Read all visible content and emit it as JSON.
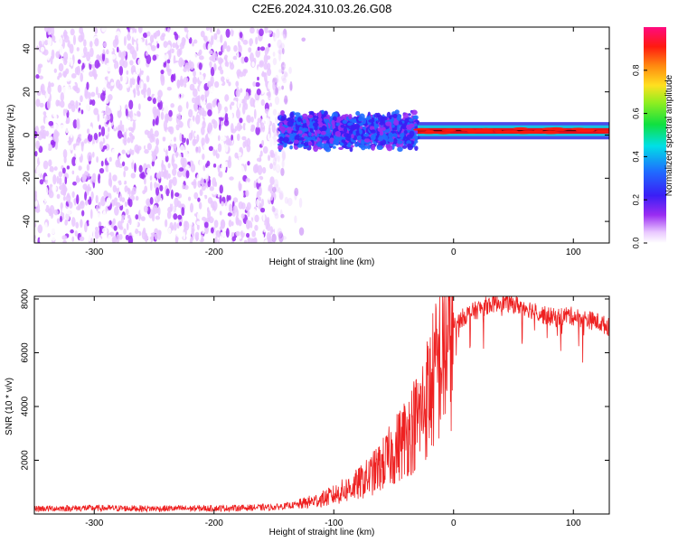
{
  "figure_title": "C2E6.2024.310.03.26.G08",
  "colors": {
    "frame": "#000000",
    "snr_line": "#ee2020",
    "signal_ridge": "#e60f1e",
    "sparse_dots": "#6a16ee"
  },
  "chart_data": [
    {
      "type": "heatmap",
      "title": "C2E6.2024.310.03.26.G08",
      "xlabel": "Height of straight line (km)",
      "ylabel": "Frequency (Hz)",
      "xlim": [
        -350,
        130
      ],
      "ylim": [
        -50,
        50
      ],
      "x_ticks": [
        -300,
        -200,
        -100,
        0,
        100
      ],
      "y_ticks": [
        -40,
        -20,
        0,
        20,
        40
      ],
      "grid": false,
      "colorbar": {
        "label": "Normalized spectral amplitude",
        "range": [
          0,
          1
        ],
        "ticks": [
          0.0,
          0.2,
          0.4,
          0.6,
          0.8
        ],
        "colormap": "rainbow (purple-blue-cyan-green-yellow-red-magenta)"
      },
      "description_regions": [
        {
          "x_range": [
            -350,
            -140
          ],
          "freq_range": [
            -50,
            50
          ],
          "amplitude": [
            0.0,
            0.15
          ]
        },
        {
          "x_range": [
            -145,
            -30
          ],
          "freq_range": [
            -15,
            12
          ],
          "amplitude": [
            0.15,
            0.45
          ]
        },
        {
          "x_range": [
            -30,
            130
          ],
          "freq_range": [
            0,
            4
          ],
          "amplitude": [
            0.8,
            1.0
          ]
        }
      ]
    },
    {
      "type": "line",
      "xlabel": "Height of straight line (km)",
      "ylabel": "SNR (10 * v/v)",
      "xlim": [
        -350,
        130
      ],
      "ylim": [
        0,
        8100
      ],
      "x_ticks": [
        -300,
        -200,
        -100,
        0,
        100
      ],
      "y_ticks": [
        2000,
        4000,
        6000,
        8000
      ],
      "grid": false,
      "series": [
        {
          "x": [
            -350,
            -300,
            -250,
            -200,
            -150,
            -130,
            -110,
            -100,
            -90,
            -80,
            -70,
            -60,
            -50,
            -40,
            -30,
            -25,
            -20,
            -15,
            -10,
            -5,
            0,
            5,
            10,
            15,
            20,
            25,
            30,
            35,
            40,
            45,
            50,
            55,
            60,
            65,
            70,
            75,
            80,
            85,
            90,
            95,
            100,
            105,
            110,
            115,
            120,
            125,
            130
          ],
          "values": [
            200,
            220,
            200,
            210,
            250,
            350,
            550,
            700,
            900,
            1100,
            1400,
            1800,
            2300,
            2900,
            3500,
            4000,
            4600,
            5200,
            5800,
            6400,
            6900,
            7200,
            7400,
            7500,
            7600,
            7700,
            7800,
            7850,
            7900,
            7850,
            7800,
            7750,
            7700,
            7600,
            7500,
            7400,
            7350,
            7300,
            7350,
            7400,
            7350,
            7300,
            7250,
            7200,
            7150,
            7050,
            6950
          ]
        }
      ]
    }
  ]
}
